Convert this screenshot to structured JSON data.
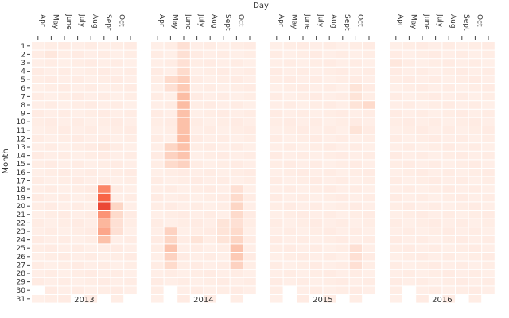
{
  "chart_data": {
    "type": "heatmap",
    "title": "",
    "xlabel": "Day",
    "ylabel": "Month",
    "years": [
      "2013",
      "2014",
      "2015",
      "2016"
    ],
    "month_columns": [
      "Apr",
      "May",
      "June",
      "July",
      "Aug",
      "Sept",
      "Oct",
      ""
    ],
    "day_rows": [
      1,
      2,
      3,
      4,
      5,
      6,
      7,
      8,
      9,
      10,
      11,
      12,
      13,
      14,
      15,
      16,
      17,
      18,
      19,
      20,
      21,
      22,
      23,
      24,
      25,
      26,
      27,
      28,
      29,
      30,
      31
    ],
    "colorscale": [
      "#fff5f0",
      "#fcbba1",
      "#fb6a4a",
      "#de2d26"
    ],
    "value_range": [
      0,
      1
    ],
    "panels": [
      {
        "year": "2013",
        "missing": [
          [
            0,
            30
          ],
          [
            3,
            31
          ],
          [
            5,
            31
          ],
          [
            7,
            31
          ]
        ],
        "hot": [
          {
            "col": 5,
            "day": 18,
            "v": 0.55
          },
          {
            "col": 5,
            "day": 19,
            "v": 0.7
          },
          {
            "col": 5,
            "day": 20,
            "v": 0.85
          },
          {
            "col": 5,
            "day": 21,
            "v": 0.5
          },
          {
            "col": 5,
            "day": 22,
            "v": 0.35
          },
          {
            "col": 5,
            "day": 23,
            "v": 0.42
          },
          {
            "col": 5,
            "day": 24,
            "v": 0.3
          },
          {
            "col": 6,
            "day": 20,
            "v": 0.18
          },
          {
            "col": 6,
            "day": 21,
            "v": 0.15
          },
          {
            "col": 6,
            "day": 22,
            "v": 0.12
          },
          {
            "col": 6,
            "day": 23,
            "v": 0.12
          },
          {
            "col": 5,
            "day": 13,
            "v": 0.08
          },
          {
            "col": 1,
            "day": 2,
            "v": 0.08
          }
        ]
      },
      {
        "year": "2014",
        "missing": [
          [
            1,
            30
          ],
          [
            1,
            31
          ],
          [
            3,
            31
          ],
          [
            5,
            31
          ],
          [
            7,
            31
          ]
        ],
        "hot": [
          {
            "col": 2,
            "day": 1,
            "v": 0.12
          },
          {
            "col": 2,
            "day": 2,
            "v": 0.12
          },
          {
            "col": 2,
            "day": 3,
            "v": 0.12
          },
          {
            "col": 2,
            "day": 4,
            "v": 0.15
          },
          {
            "col": 2,
            "day": 5,
            "v": 0.22
          },
          {
            "col": 2,
            "day": 6,
            "v": 0.25
          },
          {
            "col": 2,
            "day": 7,
            "v": 0.32
          },
          {
            "col": 2,
            "day": 8,
            "v": 0.32
          },
          {
            "col": 2,
            "day": 9,
            "v": 0.3
          },
          {
            "col": 2,
            "day": 10,
            "v": 0.3
          },
          {
            "col": 2,
            "day": 11,
            "v": 0.3
          },
          {
            "col": 2,
            "day": 12,
            "v": 0.32
          },
          {
            "col": 2,
            "day": 13,
            "v": 0.3
          },
          {
            "col": 2,
            "day": 14,
            "v": 0.28
          },
          {
            "col": 2,
            "day": 15,
            "v": 0.2
          },
          {
            "col": 1,
            "day": 5,
            "v": 0.15
          },
          {
            "col": 1,
            "day": 6,
            "v": 0.12
          },
          {
            "col": 1,
            "day": 13,
            "v": 0.18
          },
          {
            "col": 1,
            "day": 14,
            "v": 0.2
          },
          {
            "col": 1,
            "day": 15,
            "v": 0.15
          },
          {
            "col": 1,
            "day": 23,
            "v": 0.2
          },
          {
            "col": 1,
            "day": 24,
            "v": 0.18
          },
          {
            "col": 1,
            "day": 25,
            "v": 0.28
          },
          {
            "col": 1,
            "day": 26,
            "v": 0.2
          },
          {
            "col": 1,
            "day": 27,
            "v": 0.15
          },
          {
            "col": 6,
            "day": 18,
            "v": 0.12
          },
          {
            "col": 6,
            "day": 19,
            "v": 0.15
          },
          {
            "col": 6,
            "day": 20,
            "v": 0.18
          },
          {
            "col": 6,
            "day": 21,
            "v": 0.15
          },
          {
            "col": 6,
            "day": 22,
            "v": 0.12
          },
          {
            "col": 6,
            "day": 23,
            "v": 0.15
          },
          {
            "col": 6,
            "day": 24,
            "v": 0.18
          },
          {
            "col": 6,
            "day": 25,
            "v": 0.28
          },
          {
            "col": 6,
            "day": 26,
            "v": 0.25
          },
          {
            "col": 6,
            "day": 27,
            "v": 0.2
          },
          {
            "col": 5,
            "day": 22,
            "v": 0.1
          },
          {
            "col": 5,
            "day": 23,
            "v": 0.1
          },
          {
            "col": 5,
            "day": 24,
            "v": 0.1
          },
          {
            "col": 3,
            "day": 24,
            "v": 0.1
          }
        ]
      },
      {
        "year": "2015",
        "missing": [
          [
            1,
            30
          ],
          [
            1,
            31
          ],
          [
            3,
            31
          ],
          [
            5,
            31
          ],
          [
            7,
            31
          ]
        ],
        "hot": [
          {
            "col": 6,
            "day": 6,
            "v": 0.1
          },
          {
            "col": 6,
            "day": 7,
            "v": 0.1
          },
          {
            "col": 6,
            "day": 8,
            "v": 0.1
          },
          {
            "col": 7,
            "day": 8,
            "v": 0.15
          },
          {
            "col": 6,
            "day": 11,
            "v": 0.1
          },
          {
            "col": 6,
            "day": 25,
            "v": 0.12
          },
          {
            "col": 6,
            "day": 26,
            "v": 0.12
          },
          {
            "col": 6,
            "day": 27,
            "v": 0.12
          }
        ]
      },
      {
        "year": "2016",
        "missing": [
          [
            1,
            30
          ],
          [
            1,
            31
          ],
          [
            3,
            31
          ],
          [
            5,
            31
          ],
          [
            7,
            31
          ]
        ],
        "hot": [
          {
            "col": 0,
            "day": 3,
            "v": 0.08
          }
        ]
      }
    ]
  }
}
